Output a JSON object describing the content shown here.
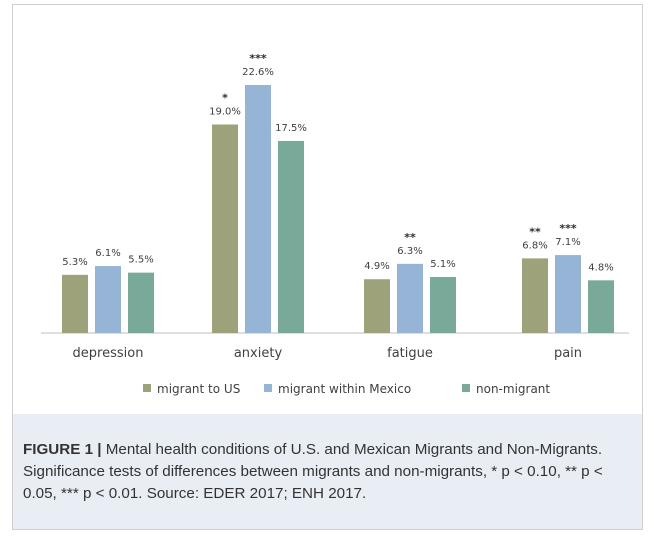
{
  "chart_data": {
    "type": "bar",
    "categories": [
      "depression",
      "anxiety",
      "fatigue",
      "pain"
    ],
    "series": [
      {
        "name": "migrant to US",
        "color": "#9ea27a",
        "values": [
          5.3,
          19.0,
          4.9,
          6.8
        ],
        "labels": [
          "5.3%",
          "19.0%",
          "4.9%",
          "6.8%"
        ],
        "sig": [
          "",
          "*",
          "",
          "**"
        ]
      },
      {
        "name": "migrant within Mexico",
        "color": "#96b4d6",
        "values": [
          6.1,
          22.6,
          6.3,
          7.1
        ],
        "labels": [
          "6.1%",
          "22.6%",
          "6.3%",
          "7.1%"
        ],
        "sig": [
          "",
          "***",
          "**",
          "***"
        ]
      },
      {
        "name": "non-migrant",
        "color": "#79a999",
        "values": [
          5.5,
          17.5,
          5.1,
          4.8
        ],
        "labels": [
          "5.5%",
          "17.5%",
          "5.1%",
          "4.8%"
        ],
        "sig": [
          "",
          "",
          "",
          ""
        ]
      }
    ],
    "ylim": [
      0,
      22.6
    ],
    "grid": false,
    "legend_position": "bottom"
  },
  "caption": {
    "label": "FIGURE 1 |",
    "text": "Mental health conditions of U.S. and Mexican Migrants and Non-Migrants. Significance tests of differences between migrants and non-migrants, * p < 0.10, ** p < 0.05, *** p < 0.01. Source: EDER 2017; ENH 2017."
  }
}
